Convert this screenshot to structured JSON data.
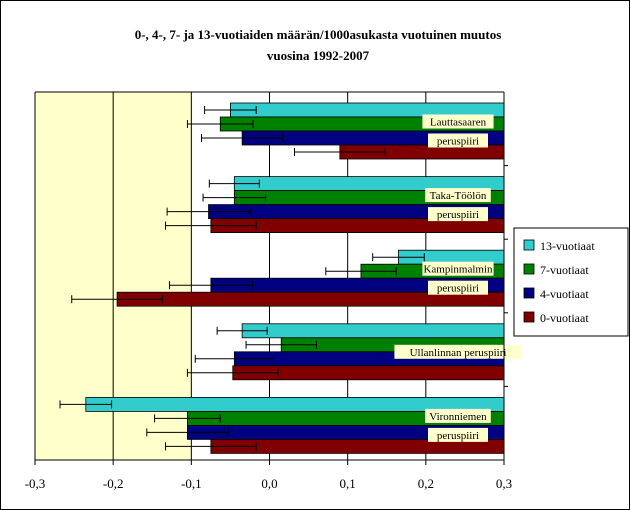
{
  "chart_data": {
    "type": "bar",
    "orientation": "horizontal",
    "title_lines": [
      "0-, 4-, 7- ja 13-vuotiaiden määrän/1000asukasta vuotuinen muutos",
      "vuosina 1992-2007"
    ],
    "xlim": [
      -0.3,
      0.3
    ],
    "xticks": [
      -0.3,
      -0.2,
      -0.1,
      0.0,
      0.1,
      0.2,
      0.3
    ],
    "xtick_labels": [
      "-0,3",
      "-0,2",
      "-0,1",
      "0,0",
      "0,1",
      "0,2",
      "0,3"
    ],
    "grid": "vertical gridlines at 0.1 steps",
    "plot_background": "shaded pale yellow between -0.3 and -0.1",
    "legend_position": "right",
    "categories": [
      {
        "lines": [
          "Lauttasaaren",
          "peruspiiri"
        ]
      },
      {
        "lines": [
          "Taka-Töölön",
          "peruspiiri"
        ]
      },
      {
        "lines": [
          "Kampinmalmin",
          "peruspiiri"
        ]
      },
      {
        "lines": [
          "Ullanlinnan peruspiiri"
        ]
      },
      {
        "lines": [
          "Vironniemen",
          "peruspiiri"
        ]
      }
    ],
    "series": [
      {
        "name": "13-vuotiaat",
        "color": "#33cccc",
        "values": [
          -0.05,
          -0.045,
          0.165,
          -0.035,
          -0.235
        ],
        "error": [
          0.033,
          0.032,
          0.033,
          0.032,
          0.033
        ]
      },
      {
        "name": "7-vuotiaat",
        "color": "#008000",
        "values": [
          -0.063,
          -0.045,
          0.117,
          0.015,
          -0.105
        ],
        "error": [
          0.042,
          0.04,
          0.045,
          0.045,
          0.042
        ]
      },
      {
        "name": "4-vuotiaat",
        "color": "#000080",
        "values": [
          -0.035,
          -0.078,
          -0.075,
          -0.045,
          -0.105
        ],
        "error": [
          0.052,
          0.053,
          0.053,
          0.05,
          0.052
        ]
      },
      {
        "name": "0-vuotiaat",
        "color": "#800000",
        "values": [
          0.09,
          -0.075,
          -0.195,
          -0.047,
          -0.075
        ],
        "error": [
          0.058,
          0.058,
          0.058,
          0.058,
          0.058
        ]
      }
    ]
  }
}
